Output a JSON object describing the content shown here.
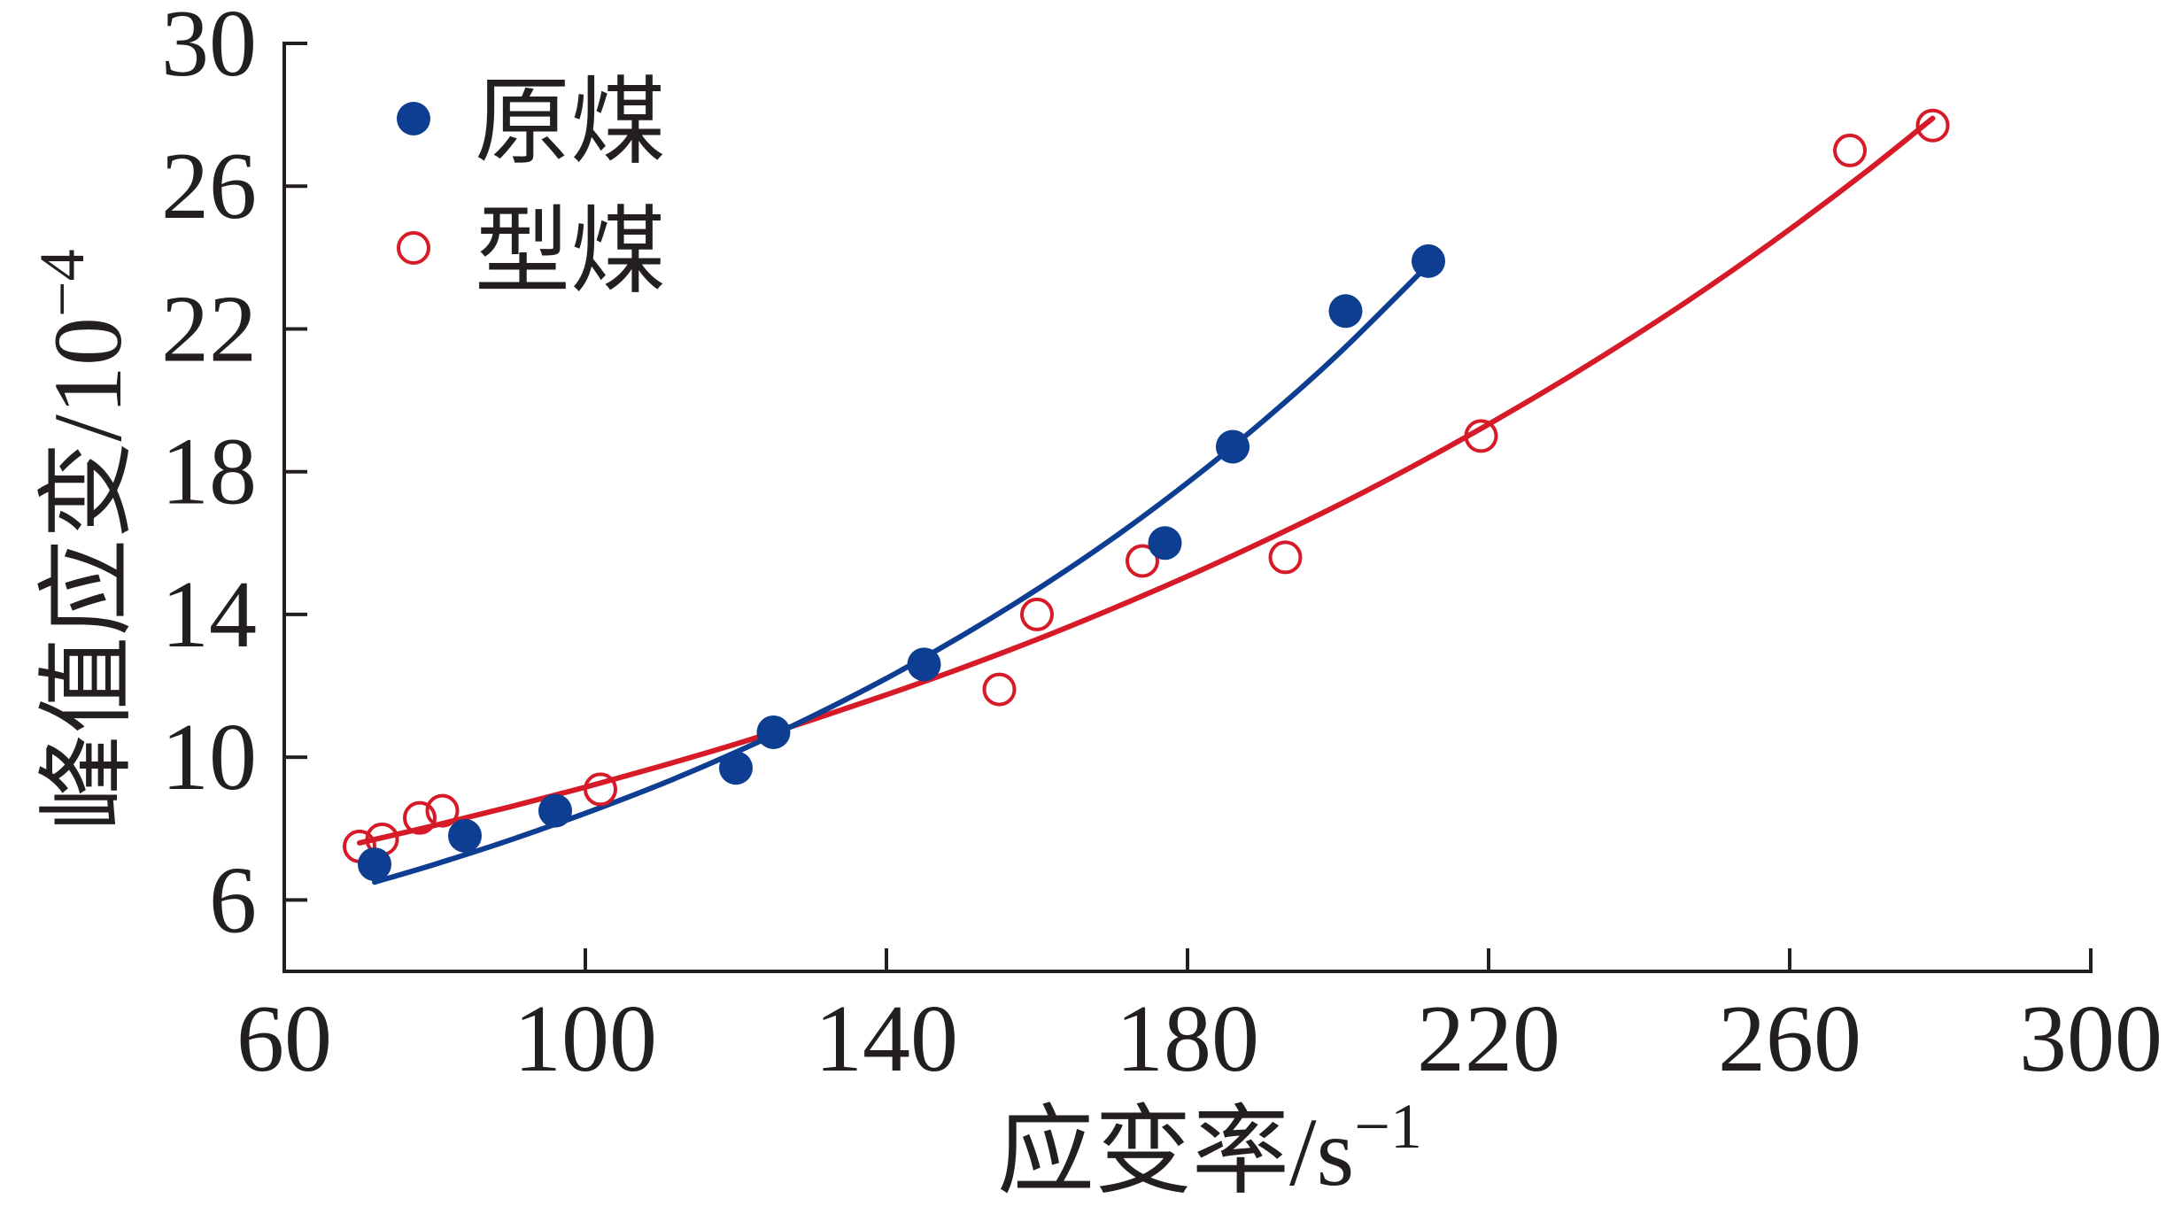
{
  "chart_data": {
    "type": "scatter",
    "xlabel": "应变率/s",
    "xlabel_sup": "−1",
    "ylabel": "峰值应变/10",
    "ylabel_sup": "−4",
    "xlim": [
      60,
      300
    ],
    "ylim": [
      4,
      30
    ],
    "xticks": [
      60,
      100,
      140,
      180,
      220,
      260,
      300
    ],
    "yticks": [
      6,
      10,
      14,
      18,
      22,
      26,
      30
    ],
    "grid": false,
    "legend": "top-left",
    "series": [
      {
        "name": "原煤",
        "filled": true,
        "color": "#0e3e91",
        "x": [
          72,
          84,
          96,
          120,
          125,
          145,
          177,
          186,
          201,
          212
        ],
        "y": [
          7.0,
          7.8,
          8.5,
          9.7,
          10.7,
          12.6,
          16.0,
          18.7,
          22.5,
          23.9
        ],
        "fit": {
          "x": [
            72,
            80,
            90,
            100,
            110,
            120,
            130,
            140,
            150,
            160,
            170,
            180,
            190,
            200,
            212
          ],
          "y": [
            6.5,
            7.0,
            7.68,
            8.43,
            9.24,
            10.14,
            11.13,
            12.21,
            13.4,
            14.7,
            16.12,
            17.69,
            19.41,
            21.29,
            23.8
          ]
        }
      },
      {
        "name": "型煤",
        "filled": false,
        "color": "#d71a28",
        "x": [
          70,
          73,
          78,
          81,
          102,
          155,
          160,
          174,
          193,
          219,
          268,
          279
        ],
        "y": [
          7.5,
          7.7,
          8.3,
          8.5,
          9.1,
          11.9,
          14.0,
          15.5,
          15.6,
          19.0,
          27.0,
          27.7
        ],
        "fit": {
          "x": [
            70,
            80,
            90,
            100,
            110,
            120,
            130,
            140,
            150,
            160,
            170,
            180,
            190,
            200,
            210,
            220,
            230,
            240,
            250,
            260,
            270,
            279
          ],
          "y": [
            7.6,
            8.09,
            8.61,
            9.16,
            9.75,
            10.37,
            11.04,
            11.75,
            12.5,
            13.3,
            14.16,
            15.07,
            16.04,
            17.06,
            18.16,
            19.33,
            20.57,
            21.89,
            23.29,
            24.79,
            26.38,
            27.9
          ]
        }
      }
    ]
  }
}
